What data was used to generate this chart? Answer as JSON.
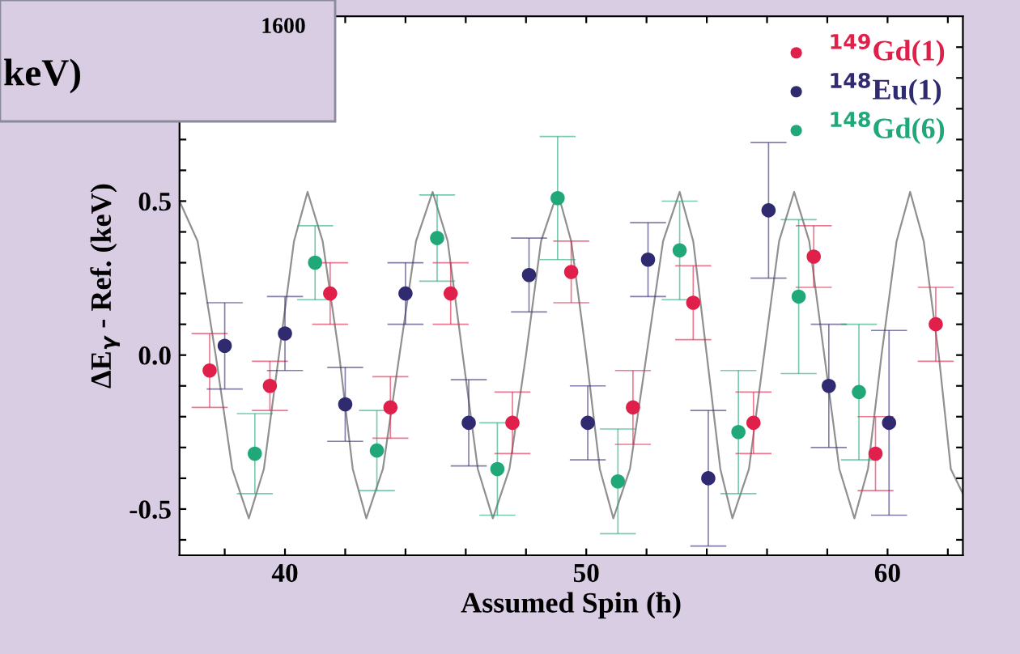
{
  "chart_data": {
    "type": "scatter",
    "xlabel": "Assumed Spin (ħ)",
    "ylabel": "ΔE$_{γ}$ - Ref. (keV)",
    "annotations": [
      "1600",
      "keV)"
    ],
    "xlim": [
      36.5,
      62.5
    ],
    "ylim": [
      -0.65,
      1.1
    ],
    "xticks": [
      {
        "value": 38,
        "label": null
      },
      40,
      {
        "value": 42,
        "label": null
      },
      {
        "value": 44,
        "label": null
      },
      {
        "value": 46,
        "label": null
      },
      {
        "value": 48,
        "label": null
      },
      50,
      {
        "value": 52,
        "label": null
      },
      {
        "value": 54,
        "label": null
      },
      {
        "value": 56,
        "label": null
      },
      {
        "value": 58,
        "label": null
      },
      60,
      {
        "value": 62,
        "label": null
      }
    ],
    "yticks": [
      {
        "value": -0.6,
        "label": null
      },
      {
        "value": -0.5,
        "label": "-0.5"
      },
      {
        "value": -0.4,
        "label": null
      },
      {
        "value": -0.3,
        "label": null
      },
      {
        "value": -0.2,
        "label": null
      },
      {
        "value": -0.1,
        "label": null
      },
      {
        "value": 0,
        "label": "0.0"
      },
      {
        "value": 0.1,
        "label": null
      },
      {
        "value": 0.2,
        "label": null
      },
      {
        "value": 0.3,
        "label": null
      },
      {
        "value": 0.4,
        "label": null
      },
      {
        "value": 0.5,
        "label": "0.5"
      },
      {
        "value": 0.6,
        "label": null
      },
      {
        "value": 0.7,
        "label": null
      },
      {
        "value": 0.8,
        "label": null
      },
      {
        "value": 0.9,
        "label": null
      },
      {
        "value": 1.0,
        "label": null
      }
    ],
    "legend": "top right",
    "grid": false,
    "marker": "circle",
    "series": [
      {
        "type": "line",
        "marker": "none",
        "color": "#909090",
        "x": [
          36.5,
          37.1,
          37.7,
          38.25,
          38.8,
          39.3,
          39.8,
          40.3,
          40.75,
          41.25,
          41.8,
          42.25,
          42.7,
          43.25,
          43.8,
          44.35,
          44.9,
          45.4,
          45.9,
          46.4,
          46.9,
          47.45,
          48.0,
          48.5,
          49.05,
          49.5,
          50.0,
          50.45,
          50.9,
          51.45,
          52.0,
          52.55,
          53.1,
          53.55,
          54.0,
          54.45,
          54.85,
          55.4,
          55.9,
          56.4,
          56.9,
          57.4,
          57.9,
          58.4,
          58.9,
          59.35,
          59.8,
          60.3,
          60.75,
          61.2,
          61.7,
          62.1,
          62.5
        ],
        "values": [
          0.5,
          0.37,
          0,
          -0.37,
          -0.53,
          -0.37,
          0,
          0.37,
          0.53,
          0.37,
          0,
          -0.37,
          -0.53,
          -0.37,
          0,
          0.37,
          0.53,
          0.37,
          0,
          -0.37,
          -0.53,
          -0.37,
          0,
          0.37,
          0.53,
          0.37,
          0,
          -0.37,
          -0.53,
          -0.37,
          0,
          0.37,
          0.53,
          0.37,
          0,
          -0.37,
          -0.53,
          -0.37,
          0,
          0.37,
          0.53,
          0.37,
          0,
          -0.37,
          -0.53,
          -0.37,
          0,
          0.37,
          0.53,
          0.37,
          0,
          -0.37,
          -0.45
        ]
      },
      {
        "name": "$^{149}$Gd(1)",
        "color": "#e0204a",
        "x": [
          37.5,
          39.5,
          41.5,
          43.5,
          45.5,
          47.55,
          49.5,
          51.55,
          53.55,
          55.55,
          57.55,
          59.6,
          61.6
        ],
        "values": [
          -0.05,
          -0.1,
          0.2,
          -0.17,
          0.2,
          -0.22,
          0.27,
          -0.17,
          0.17,
          -0.22,
          0.32,
          -0.32,
          0.1
        ],
        "errors": [
          0.12,
          0.08,
          0.1,
          0.1,
          0.1,
          0.1,
          0.1,
          0.12,
          0.12,
          0.1,
          0.1,
          0.12,
          0.12
        ]
      },
      {
        "name": "$^{148}$Eu(1)",
        "color": "#302a70",
        "x": [
          38.0,
          40.0,
          42.0,
          44.0,
          46.1,
          48.1,
          50.05,
          52.05,
          54.05,
          56.05,
          58.05,
          60.05
        ],
        "values": [
          0.03,
          0.07,
          -0.16,
          0.2,
          -0.22,
          0.26,
          -0.22,
          0.31,
          -0.4,
          0.47,
          -0.1,
          -0.22
        ],
        "errors": [
          0.14,
          0.12,
          0.12,
          0.1,
          0.14,
          0.12,
          0.12,
          0.12,
          0.22,
          0.22,
          0.2,
          0.3
        ]
      },
      {
        "name": "$^{148}$Gd(6)",
        "color": "#20a878",
        "x": [
          39.0,
          41.0,
          43.05,
          45.05,
          47.05,
          49.05,
          51.05,
          53.1,
          55.05,
          57.05,
          59.05
        ],
        "values": [
          -0.32,
          0.3,
          -0.31,
          0.38,
          -0.37,
          0.51,
          -0.41,
          0.34,
          -0.25,
          0.19,
          -0.12
        ],
        "errors": [
          0.13,
          0.12,
          0.13,
          0.14,
          0.15,
          0.2,
          0.17,
          0.16,
          0.2,
          0.25,
          0.22
        ]
      }
    ]
  }
}
